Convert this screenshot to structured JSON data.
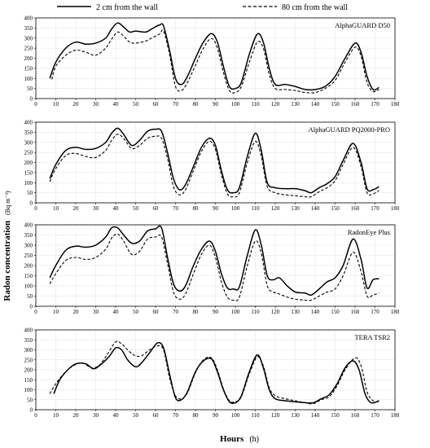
{
  "legend": {
    "solid_label": "2 cm from the wall",
    "dashed_label": "80 cm from the wall"
  },
  "axes": {
    "ylabel_main": "Radon concentration",
    "ylabel_unit": "(Bq m⁻³)",
    "xlabel_main": "Hours",
    "xlabel_unit": "(h)"
  },
  "chart_data": [
    {
      "type": "line",
      "title": "AlphaGUARD D50",
      "xlim": [
        0,
        180
      ],
      "ylim": [
        0,
        400
      ],
      "xticks": [
        0,
        10,
        20,
        30,
        40,
        50,
        60,
        70,
        80,
        90,
        100,
        110,
        120,
        130,
        140,
        150,
        160,
        170,
        180
      ],
      "yticks": [
        0,
        50,
        100,
        150,
        200,
        250,
        300,
        350,
        400
      ],
      "grid": true,
      "series": [
        {
          "name": "2 cm from the wall",
          "style": "solid",
          "x": [
            7,
            10,
            15,
            20,
            25,
            30,
            35,
            38,
            41,
            44,
            47,
            50,
            55,
            58,
            62,
            64,
            67,
            70,
            73,
            76,
            80,
            84,
            88,
            91,
            94,
            97,
            100,
            103,
            107,
            111,
            114,
            117,
            120,
            125,
            130,
            135,
            140,
            145,
            150,
            155,
            160,
            163,
            166,
            169,
            172
          ],
          "y": [
            100,
            180,
            250,
            280,
            270,
            275,
            300,
            345,
            375,
            355,
            330,
            335,
            330,
            345,
            365,
            360,
            240,
            100,
            70,
            110,
            200,
            280,
            322,
            280,
            160,
            60,
            50,
            80,
            220,
            320,
            280,
            150,
            70,
            70,
            60,
            45,
            45,
            60,
            110,
            200,
            275,
            230,
            110,
            45,
            55
          ]
        },
        {
          "name": "80 cm from the wall",
          "style": "dashed",
          "x": [
            8,
            10,
            15,
            20,
            25,
            30,
            35,
            38,
            41,
            44,
            47,
            50,
            55,
            58,
            62,
            64,
            67,
            70,
            73,
            76,
            80,
            84,
            88,
            91,
            94,
            97,
            100,
            103,
            107,
            111,
            114,
            117,
            120,
            125,
            130,
            135,
            140,
            145,
            150,
            155,
            160,
            163,
            166,
            169,
            172
          ],
          "y": [
            95,
            160,
            215,
            240,
            230,
            215,
            250,
            295,
            330,
            310,
            280,
            275,
            285,
            300,
            320,
            335,
            220,
            60,
            40,
            80,
            165,
            250,
            298,
            250,
            130,
            40,
            30,
            60,
            180,
            280,
            250,
            120,
            50,
            45,
            40,
            30,
            30,
            50,
            90,
            180,
            255,
            210,
            80,
            35,
            45
          ]
        }
      ]
    },
    {
      "type": "line",
      "title": "AlphaGUARD PQ2000-PRO",
      "xlim": [
        0,
        180
      ],
      "ylim": [
        0,
        400
      ],
      "xticks": [
        0,
        10,
        20,
        30,
        40,
        50,
        60,
        70,
        80,
        90,
        100,
        110,
        120,
        130,
        140,
        150,
        160,
        170,
        180
      ],
      "yticks": [
        0,
        50,
        100,
        150,
        200,
        250,
        300,
        350,
        400
      ],
      "grid": true,
      "series": [
        {
          "name": "2 cm from the wall",
          "style": "solid",
          "x": [
            7,
            10,
            15,
            20,
            25,
            30,
            35,
            38,
            41,
            44,
            48,
            52,
            56,
            60,
            63,
            66,
            69,
            72,
            75,
            79,
            83,
            87,
            90,
            93,
            96,
            99,
            102,
            106,
            110,
            113,
            116,
            120,
            125,
            130,
            135,
            138,
            142,
            146,
            150,
            154,
            159,
            163,
            166,
            169,
            172
          ],
          "y": [
            120,
            190,
            260,
            275,
            265,
            270,
            300,
            345,
            370,
            340,
            285,
            310,
            355,
            365,
            355,
            250,
            120,
            65,
            90,
            180,
            275,
            320,
            285,
            160,
            65,
            50,
            75,
            230,
            345,
            260,
            100,
            75,
            70,
            70,
            60,
            50,
            75,
            95,
            130,
            210,
            295,
            200,
            70,
            65,
            80
          ]
        },
        {
          "name": "80 cm from the wall",
          "style": "dashed",
          "x": [
            7,
            10,
            15,
            20,
            25,
            30,
            35,
            38,
            41,
            44,
            48,
            52,
            56,
            60,
            63,
            66,
            69,
            72,
            75,
            79,
            83,
            87,
            90,
            93,
            96,
            99,
            102,
            106,
            110,
            113,
            116,
            120,
            125,
            130,
            135,
            138,
            142,
            146,
            150,
            154,
            159,
            163,
            166,
            169,
            172
          ],
          "y": [
            105,
            170,
            235,
            245,
            230,
            225,
            260,
            310,
            340,
            320,
            270,
            285,
            320,
            330,
            320,
            220,
            80,
            40,
            65,
            160,
            255,
            305,
            265,
            140,
            45,
            30,
            50,
            200,
            305,
            230,
            80,
            50,
            40,
            35,
            30,
            30,
            55,
            75,
            110,
            190,
            275,
            180,
            50,
            45,
            60
          ]
        }
      ]
    },
    {
      "type": "line",
      "title": "RadonEye Plus",
      "xlim": [
        0,
        180
      ],
      "ylim": [
        0,
        400
      ],
      "xticks": [
        0,
        10,
        20,
        30,
        40,
        50,
        60,
        70,
        80,
        90,
        100,
        110,
        120,
        130,
        140,
        150,
        160,
        170,
        180
      ],
      "yticks": [
        0,
        50,
        100,
        150,
        200,
        250,
        300,
        350,
        400
      ],
      "grid": true,
      "series": [
        {
          "name": "2 cm from the wall",
          "style": "solid",
          "x": [
            7,
            10,
            15,
            20,
            25,
            30,
            35,
            38,
            41,
            44,
            48,
            52,
            56,
            60,
            63,
            66,
            69,
            72,
            75,
            79,
            83,
            87,
            90,
            93,
            96,
            99,
            102,
            106,
            110,
            113,
            116,
            119,
            122,
            126,
            130,
            135,
            138,
            142,
            146,
            150,
            154,
            159,
            163,
            166,
            169,
            172
          ],
          "y": [
            140,
            200,
            275,
            295,
            290,
            300,
            340,
            385,
            385,
            350,
            310,
            320,
            370,
            380,
            385,
            240,
            110,
            75,
            100,
            200,
            280,
            320,
            270,
            160,
            90,
            85,
            95,
            250,
            375,
            300,
            150,
            130,
            140,
            100,
            70,
            65,
            55,
            85,
            120,
            140,
            200,
            330,
            230,
            90,
            130,
            135
          ]
        },
        {
          "name": "80 cm from the wall",
          "style": "dashed",
          "x": [
            7,
            10,
            15,
            20,
            25,
            30,
            35,
            38,
            41,
            44,
            48,
            52,
            56,
            60,
            63,
            66,
            69,
            72,
            75,
            79,
            83,
            87,
            90,
            93,
            96,
            99,
            102,
            106,
            110,
            113,
            116,
            119,
            122,
            126,
            130,
            135,
            138,
            142,
            146,
            150,
            154,
            159,
            163,
            166,
            169,
            172
          ],
          "y": [
            110,
            160,
            225,
            240,
            230,
            240,
            280,
            335,
            355,
            320,
            255,
            270,
            330,
            340,
            340,
            210,
            70,
            35,
            60,
            160,
            255,
            300,
            240,
            120,
            45,
            30,
            45,
            200,
            320,
            260,
            100,
            70,
            60,
            45,
            35,
            30,
            30,
            50,
            70,
            85,
            150,
            265,
            170,
            50,
            55,
            65
          ]
        }
      ]
    },
    {
      "type": "line",
      "title": "TERA TSR2",
      "xlim": [
        0,
        180
      ],
      "ylim": [
        0,
        400
      ],
      "xticks": [
        0,
        10,
        20,
        30,
        40,
        50,
        60,
        70,
        80,
        90,
        100,
        110,
        120,
        130,
        140,
        150,
        160,
        170,
        180
      ],
      "yticks": [
        0,
        50,
        100,
        150,
        200,
        250,
        300,
        350,
        400
      ],
      "grid": true,
      "series": [
        {
          "name": "2 cm from the wall",
          "style": "solid",
          "x": [
            9,
            12,
            16,
            20,
            25,
            29,
            33,
            37,
            40,
            43,
            46,
            50,
            53,
            57,
            61,
            64,
            67,
            70,
            73,
            76,
            80,
            84,
            88,
            91,
            94,
            97,
            100,
            103,
            107,
            111,
            114,
            117,
            120,
            125,
            130,
            135,
            139,
            143,
            147,
            151,
            155,
            159,
            162,
            165,
            168,
            172
          ],
          "y": [
            80,
            150,
            200,
            230,
            230,
            205,
            230,
            270,
            310,
            300,
            250,
            215,
            235,
            285,
            335,
            310,
            180,
            60,
            50,
            90,
            190,
            245,
            255,
            190,
            100,
            40,
            35,
            70,
            190,
            275,
            210,
            100,
            55,
            45,
            40,
            35,
            35,
            55,
            75,
            130,
            210,
            245,
            200,
            80,
            35,
            45
          ]
        },
        {
          "name": "80 cm from the wall",
          "style": "dashed",
          "x": [
            7,
            10,
            14,
            18,
            23,
            28,
            32,
            36,
            40,
            43,
            47,
            50,
            53,
            57,
            61,
            64,
            67,
            70,
            73,
            76,
            80,
            84,
            88,
            91,
            94,
            97,
            100,
            103,
            107,
            111,
            114,
            117,
            120,
            125,
            130,
            135,
            139,
            143,
            147,
            151,
            155,
            160,
            163,
            166,
            169,
            172
          ],
          "y": [
            80,
            130,
            180,
            215,
            235,
            210,
            225,
            280,
            340,
            330,
            290,
            270,
            270,
            300,
            320,
            300,
            160,
            70,
            55,
            85,
            185,
            250,
            260,
            200,
            105,
            45,
            40,
            65,
            180,
            265,
            220,
            110,
            70,
            55,
            45,
            35,
            30,
            50,
            65,
            120,
            200,
            260,
            220,
            90,
            45,
            40
          ]
        }
      ]
    }
  ]
}
